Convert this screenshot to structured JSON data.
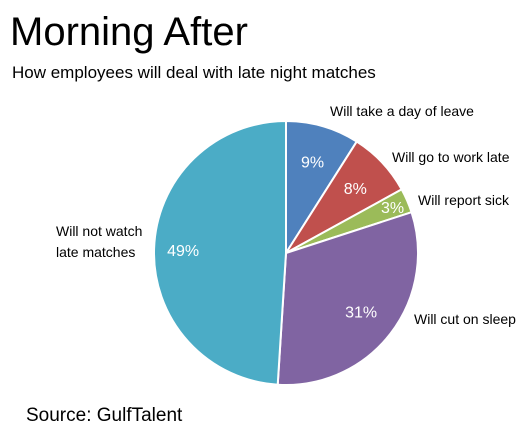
{
  "header": {
    "title": "Morning After",
    "subtitle": "How employees will deal with late night matches"
  },
  "footer": {
    "source": "Source: GulfTalent"
  },
  "chart_data": {
    "type": "pie",
    "title": "Morning After",
    "subtitle": "How employees will deal with late night matches",
    "start": "12 o'clock",
    "direction": "clockwise",
    "slices": [
      {
        "label": "Will take a day of leave",
        "value": 9,
        "display": "9%",
        "color": "#4F81BD"
      },
      {
        "label": "Will go to work late",
        "value": 8,
        "display": "8%",
        "color": "#C0504D"
      },
      {
        "label": "Will report sick",
        "value": 3,
        "display": "3%",
        "color": "#9BBB59"
      },
      {
        "label": "Will cut on sleep",
        "value": 31,
        "display": "31%",
        "color": "#8064A2"
      },
      {
        "label": "Will not watch\nlate matches",
        "value": 49,
        "display": "49%",
        "color": "#4BACC6"
      }
    ],
    "legend": "none"
  }
}
